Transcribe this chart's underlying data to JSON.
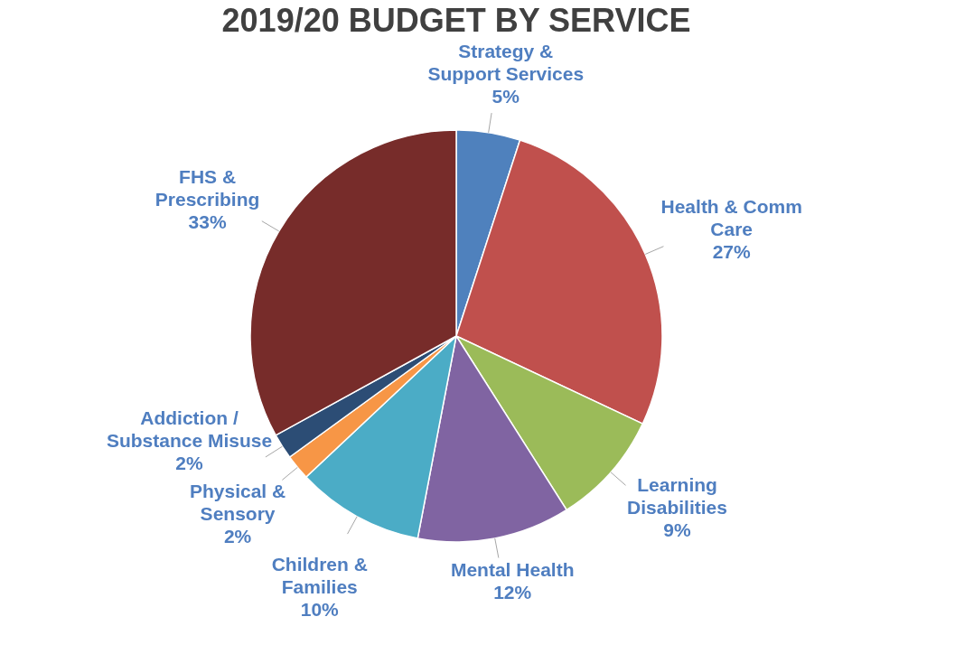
{
  "chart_data": {
    "type": "pie",
    "title": "2019/20 BUDGET BY SERVICE",
    "categories": [
      "Strategy & Support Services",
      "Health & Comm Care",
      "Learning Disabilities",
      "Mental Health",
      "Children & Families",
      "Physical & Sensory",
      "Addiction / Substance Misuse",
      "FHS & Prescribing"
    ],
    "values": [
      5,
      27,
      9,
      12,
      10,
      2,
      2,
      33
    ],
    "colors": [
      "#4f81bd",
      "#c0504d",
      "#9bbb59",
      "#8064a2",
      "#4bacc6",
      "#f79646",
      "#2c4d75",
      "#772c2a"
    ],
    "value_labels": [
      "5%",
      "27%",
      "9%",
      "12%",
      "10%",
      "2%",
      "2%",
      "33%"
    ]
  }
}
